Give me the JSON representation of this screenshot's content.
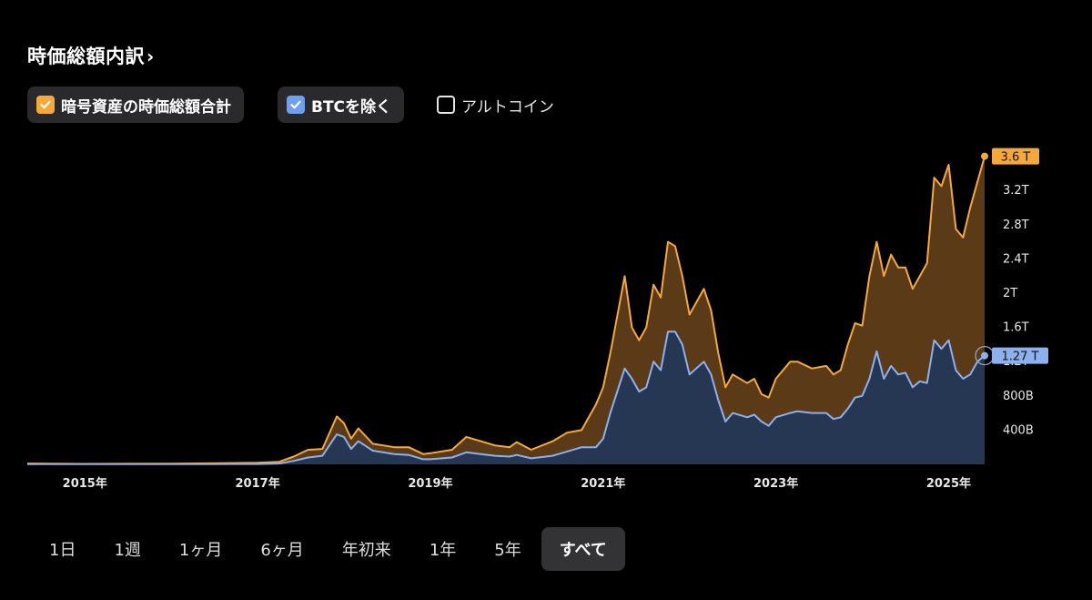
{
  "header": {
    "title": "時価総額内訳",
    "chevron": "›"
  },
  "filters": [
    {
      "label": "暗号資産の時価総額合計",
      "checked": true,
      "color": "#f5a93b"
    },
    {
      "label": "BTCを除く",
      "checked": true,
      "color": "#6ea0f0"
    },
    {
      "label": "アルトコイン",
      "checked": false,
      "color": "#e6e6e6"
    }
  ],
  "chart_data": {
    "type": "area",
    "x_start": "2014-05",
    "x_end": "2025-06",
    "x_ticks": [
      "2015年",
      "2017年",
      "2019年",
      "2021年",
      "2023年",
      "2025年"
    ],
    "y_ticks": [
      "400B",
      "800B",
      "1.2T",
      "1.6T",
      "2T",
      "2.4T",
      "2.8T",
      "3.2T"
    ],
    "ylim_T": [
      0,
      3.7
    ],
    "series": [
      {
        "name": "暗号資産の時価総額合計",
        "color": "#f5a93b",
        "fill": "#5a3a17",
        "last_label": "3.6 T",
        "points": [
          [
            "2014-05",
            0.01
          ],
          [
            "2015-01",
            0.005
          ],
          [
            "2016-01",
            0.007
          ],
          [
            "2016-06",
            0.012
          ],
          [
            "2017-01",
            0.018
          ],
          [
            "2017-04",
            0.03
          ],
          [
            "2017-06",
            0.09
          ],
          [
            "2017-08",
            0.17
          ],
          [
            "2017-10",
            0.18
          ],
          [
            "2017-12",
            0.56
          ],
          [
            "2018-01",
            0.48
          ],
          [
            "2018-02",
            0.3
          ],
          [
            "2018-03",
            0.42
          ],
          [
            "2018-05",
            0.24
          ],
          [
            "2018-08",
            0.2
          ],
          [
            "2018-10",
            0.2
          ],
          [
            "2018-12",
            0.12
          ],
          [
            "2019-01",
            0.13
          ],
          [
            "2019-04",
            0.17
          ],
          [
            "2019-06",
            0.32
          ],
          [
            "2019-08",
            0.27
          ],
          [
            "2019-10",
            0.22
          ],
          [
            "2019-12",
            0.2
          ],
          [
            "2020-01",
            0.26
          ],
          [
            "2020-03",
            0.17
          ],
          [
            "2020-06",
            0.27
          ],
          [
            "2020-08",
            0.37
          ],
          [
            "2020-10",
            0.4
          ],
          [
            "2020-12",
            0.7
          ],
          [
            "2021-01",
            0.9
          ],
          [
            "2021-02",
            1.3
          ],
          [
            "2021-04",
            2.2
          ],
          [
            "2021-05",
            1.6
          ],
          [
            "2021-06",
            1.45
          ],
          [
            "2021-07",
            1.6
          ],
          [
            "2021-08",
            2.1
          ],
          [
            "2021-09",
            1.95
          ],
          [
            "2021-10",
            2.6
          ],
          [
            "2021-11",
            2.55
          ],
          [
            "2021-12",
            2.2
          ],
          [
            "2022-01",
            1.75
          ],
          [
            "2022-03",
            2.05
          ],
          [
            "2022-04",
            1.8
          ],
          [
            "2022-05",
            1.3
          ],
          [
            "2022-06",
            0.9
          ],
          [
            "2022-07",
            1.05
          ],
          [
            "2022-09",
            0.95
          ],
          [
            "2022-10",
            1.0
          ],
          [
            "2022-11",
            0.82
          ],
          [
            "2022-12",
            0.78
          ],
          [
            "2023-01",
            1.0
          ],
          [
            "2023-03",
            1.2
          ],
          [
            "2023-04",
            1.2
          ],
          [
            "2023-06",
            1.12
          ],
          [
            "2023-08",
            1.15
          ],
          [
            "2023-09",
            1.05
          ],
          [
            "2023-10",
            1.1
          ],
          [
            "2023-11",
            1.4
          ],
          [
            "2023-12",
            1.65
          ],
          [
            "2024-01",
            1.62
          ],
          [
            "2024-02",
            2.2
          ],
          [
            "2024-03",
            2.6
          ],
          [
            "2024-04",
            2.2
          ],
          [
            "2024-05",
            2.45
          ],
          [
            "2024-06",
            2.3
          ],
          [
            "2024-07",
            2.3
          ],
          [
            "2024-08",
            2.05
          ],
          [
            "2024-09",
            2.2
          ],
          [
            "2024-10",
            2.35
          ],
          [
            "2024-11",
            3.35
          ],
          [
            "2024-12",
            3.25
          ],
          [
            "2025-01",
            3.5
          ],
          [
            "2025-02",
            2.75
          ],
          [
            "2025-03",
            2.65
          ],
          [
            "2025-04",
            3.0
          ],
          [
            "2025-05",
            3.3
          ],
          [
            "2025-06",
            3.6
          ]
        ]
      },
      {
        "name": "BTCを除く",
        "color": "#8db0ee",
        "fill": "#263754",
        "last_label": "1.27 T",
        "points": [
          [
            "2014-05",
            0.002
          ],
          [
            "2015-01",
            0.002
          ],
          [
            "2016-01",
            0.002
          ],
          [
            "2016-06",
            0.003
          ],
          [
            "2017-01",
            0.004
          ],
          [
            "2017-04",
            0.01
          ],
          [
            "2017-06",
            0.04
          ],
          [
            "2017-08",
            0.08
          ],
          [
            "2017-10",
            0.1
          ],
          [
            "2017-12",
            0.35
          ],
          [
            "2018-01",
            0.32
          ],
          [
            "2018-02",
            0.18
          ],
          [
            "2018-03",
            0.27
          ],
          [
            "2018-05",
            0.16
          ],
          [
            "2018-08",
            0.12
          ],
          [
            "2018-10",
            0.11
          ],
          [
            "2018-12",
            0.06
          ],
          [
            "2019-01",
            0.06
          ],
          [
            "2019-04",
            0.08
          ],
          [
            "2019-06",
            0.14
          ],
          [
            "2019-08",
            0.12
          ],
          [
            "2019-10",
            0.1
          ],
          [
            "2019-12",
            0.09
          ],
          [
            "2020-01",
            0.11
          ],
          [
            "2020-03",
            0.07
          ],
          [
            "2020-06",
            0.1
          ],
          [
            "2020-08",
            0.15
          ],
          [
            "2020-10",
            0.2
          ],
          [
            "2020-12",
            0.2
          ],
          [
            "2021-01",
            0.3
          ],
          [
            "2021-02",
            0.6
          ],
          [
            "2021-04",
            1.12
          ],
          [
            "2021-05",
            1.0
          ],
          [
            "2021-06",
            0.85
          ],
          [
            "2021-07",
            0.9
          ],
          [
            "2021-08",
            1.2
          ],
          [
            "2021-09",
            1.1
          ],
          [
            "2021-10",
            1.55
          ],
          [
            "2021-11",
            1.55
          ],
          [
            "2021-12",
            1.4
          ],
          [
            "2022-01",
            1.05
          ],
          [
            "2022-03",
            1.2
          ],
          [
            "2022-04",
            1.05
          ],
          [
            "2022-05",
            0.75
          ],
          [
            "2022-06",
            0.5
          ],
          [
            "2022-07",
            0.6
          ],
          [
            "2022-09",
            0.55
          ],
          [
            "2022-10",
            0.58
          ],
          [
            "2022-11",
            0.5
          ],
          [
            "2022-12",
            0.45
          ],
          [
            "2023-01",
            0.55
          ],
          [
            "2023-03",
            0.6
          ],
          [
            "2023-04",
            0.62
          ],
          [
            "2023-06",
            0.6
          ],
          [
            "2023-08",
            0.6
          ],
          [
            "2023-09",
            0.53
          ],
          [
            "2023-10",
            0.55
          ],
          [
            "2023-11",
            0.65
          ],
          [
            "2023-12",
            0.78
          ],
          [
            "2024-01",
            0.8
          ],
          [
            "2024-02",
            1.0
          ],
          [
            "2024-03",
            1.32
          ],
          [
            "2024-04",
            1.0
          ],
          [
            "2024-05",
            1.15
          ],
          [
            "2024-06",
            1.05
          ],
          [
            "2024-07",
            1.07
          ],
          [
            "2024-08",
            0.9
          ],
          [
            "2024-09",
            0.97
          ],
          [
            "2024-10",
            0.95
          ],
          [
            "2024-11",
            1.45
          ],
          [
            "2024-12",
            1.35
          ],
          [
            "2025-01",
            1.45
          ],
          [
            "2025-02",
            1.1
          ],
          [
            "2025-03",
            1.0
          ],
          [
            "2025-04",
            1.05
          ],
          [
            "2025-05",
            1.2
          ],
          [
            "2025-06",
            1.27
          ]
        ]
      }
    ]
  },
  "ranges": {
    "items": [
      "1日",
      "1週",
      "1ヶ月",
      "6ヶ月",
      "年初来",
      "1年",
      "5年",
      "すべて"
    ],
    "active": "すべて"
  }
}
